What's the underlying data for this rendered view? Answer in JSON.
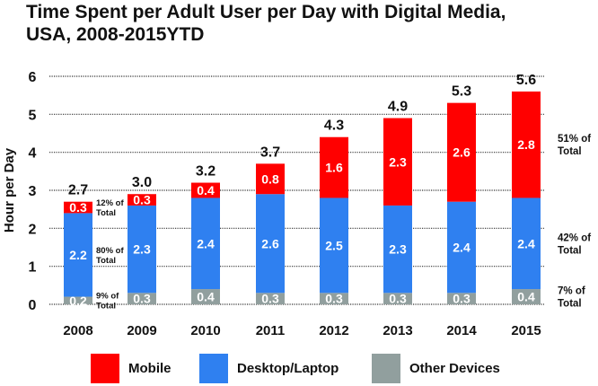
{
  "chart_data": {
    "type": "bar",
    "stacked": true,
    "title": "Time Spent per Adult User per Day with Digital Media, USA, 2008-2015YTD",
    "title_lines": [
      "Time Spent per Adult User per Day with Digital Media,",
      "USA, 2008-2015YTD"
    ],
    "xlabel": "",
    "ylabel": "Hour per Day",
    "ylim": [
      0,
      6
    ],
    "yticks": [
      0,
      1,
      2,
      3,
      4,
      5,
      6
    ],
    "grid": true,
    "categories": [
      "2008",
      "2009",
      "2010",
      "2011",
      "2012",
      "2013",
      "2014",
      "2015"
    ],
    "series": [
      {
        "name": "Other Devices",
        "color": "#919f9e",
        "values": [
          0.2,
          0.3,
          0.4,
          0.3,
          0.3,
          0.3,
          0.3,
          0.4
        ]
      },
      {
        "name": "Desktop/Laptop",
        "color": "#2f80f0",
        "values": [
          2.2,
          2.3,
          2.4,
          2.6,
          2.5,
          2.3,
          2.4,
          2.4
        ]
      },
      {
        "name": "Mobile",
        "color": "#ff0000",
        "values": [
          0.3,
          0.3,
          0.4,
          0.8,
          1.6,
          2.3,
          2.6,
          2.8
        ]
      }
    ],
    "totals": [
      "2.7",
      "3.0",
      "3.2",
      "3.7",
      "4.3",
      "4.9",
      "5.3",
      "5.6"
    ],
    "annotations_2008": [
      {
        "series": "Mobile",
        "text": [
          "12% of",
          "Total"
        ]
      },
      {
        "series": "Desktop/Laptop",
        "text": [
          "80% of",
          "Total"
        ]
      },
      {
        "series": "Other Devices",
        "text": [
          "9% of",
          "Total"
        ]
      }
    ],
    "annotations_2015": [
      {
        "series": "Mobile",
        "text": [
          "51% of",
          "Total"
        ]
      },
      {
        "series": "Desktop/Laptop",
        "text": [
          "42% of",
          "Total"
        ]
      },
      {
        "series": "Other Devices",
        "text": [
          "7% of",
          "Total"
        ]
      }
    ],
    "legend_position": "bottom",
    "legend": [
      {
        "label": "Mobile",
        "color": "#ff0000"
      },
      {
        "label": "Desktop/Laptop",
        "color": "#2f80f0"
      },
      {
        "label": "Other Devices",
        "color": "#919f9e"
      }
    ]
  }
}
